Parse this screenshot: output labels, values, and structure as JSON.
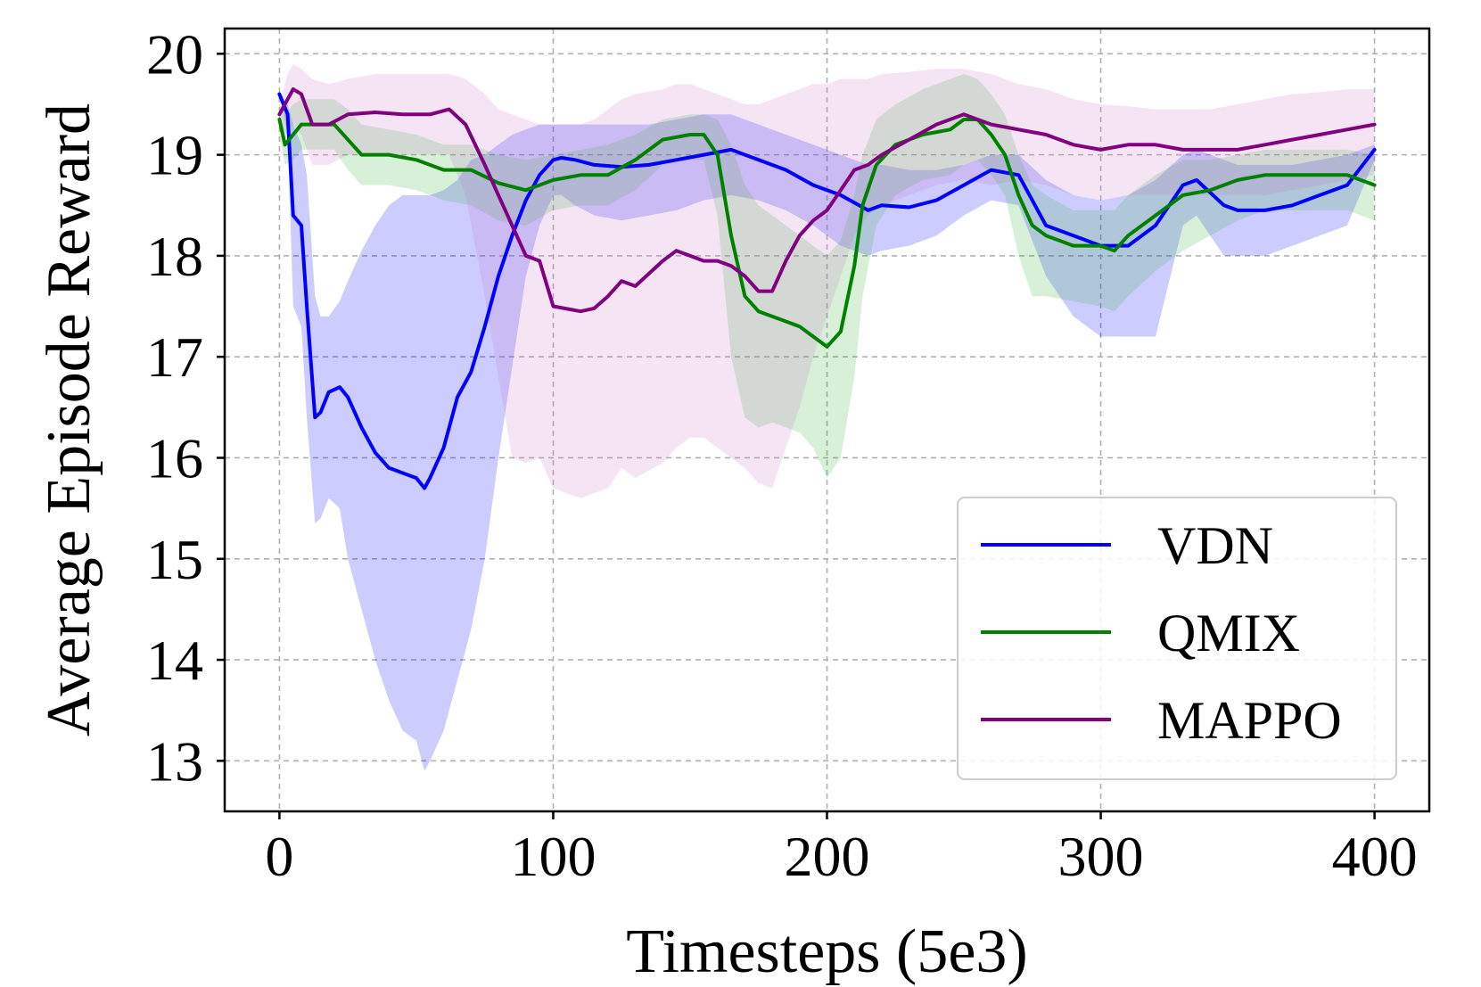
{
  "chart_data": {
    "type": "line",
    "title": "",
    "xlabel": "Timesteps (5e3)",
    "ylabel": "Average Episode Reward",
    "xlim": [
      -20,
      420
    ],
    "ylim": [
      12.5,
      20.25
    ],
    "xticks": [
      0,
      100,
      200,
      300,
      400
    ],
    "yticks": [
      13,
      14,
      15,
      16,
      17,
      18,
      19,
      20
    ],
    "xtick_labels": [
      "0",
      "100",
      "200",
      "300",
      "400"
    ],
    "ytick_labels": [
      "13",
      "14",
      "15",
      "16",
      "17",
      "18",
      "19",
      "20"
    ],
    "grid": true,
    "legend_position": "lower-right",
    "series": [
      {
        "name": "VDN",
        "color": "#0000ff",
        "band_color": "#0000ff",
        "x": [
          0,
          3,
          5,
          8,
          10,
          13,
          15,
          18,
          22,
          25,
          30,
          35,
          40,
          45,
          50,
          53,
          55,
          60,
          65,
          70,
          75,
          80,
          85,
          90,
          95,
          100,
          103,
          108,
          115,
          125,
          135,
          145,
          155,
          165,
          175,
          185,
          195,
          205,
          215,
          220,
          230,
          240,
          250,
          260,
          270,
          280,
          290,
          300,
          310,
          320,
          330,
          335,
          345,
          350,
          360,
          370,
          380,
          390,
          400
        ],
        "y": [
          19.6,
          19.4,
          18.4,
          18.3,
          17.5,
          16.4,
          16.45,
          16.65,
          16.7,
          16.6,
          16.3,
          16.05,
          15.9,
          15.85,
          15.8,
          15.7,
          15.8,
          16.1,
          16.6,
          16.85,
          17.3,
          17.8,
          18.2,
          18.55,
          18.8,
          18.95,
          18.97,
          18.95,
          18.9,
          18.88,
          18.9,
          18.95,
          19.0,
          19.05,
          18.95,
          18.85,
          18.7,
          18.6,
          18.45,
          18.5,
          18.48,
          18.55,
          18.7,
          18.85,
          18.8,
          18.3,
          18.2,
          18.1,
          18.1,
          18.3,
          18.7,
          18.75,
          18.5,
          18.45,
          18.45,
          18.5,
          18.6,
          18.7,
          19.05
        ],
        "upper": [
          19.6,
          19.5,
          19.3,
          19.1,
          18.8,
          17.6,
          17.4,
          17.4,
          17.55,
          17.75,
          18.05,
          18.3,
          18.5,
          18.6,
          18.6,
          18.6,
          18.6,
          18.65,
          18.75,
          18.95,
          19.0,
          19.1,
          19.2,
          19.25,
          19.3,
          19.3,
          19.3,
          19.3,
          19.3,
          19.3,
          19.3,
          19.35,
          19.4,
          19.4,
          19.3,
          19.2,
          19.1,
          19.0,
          18.9,
          18.9,
          18.85,
          18.85,
          18.9,
          19.0,
          19.0,
          18.75,
          18.6,
          18.55,
          18.6,
          18.75,
          19.0,
          19.05,
          18.95,
          18.9,
          18.9,
          18.9,
          18.95,
          19.0,
          19.1
        ],
        "lower": [
          19.6,
          19.2,
          17.5,
          17.3,
          16.4,
          15.35,
          15.4,
          15.6,
          15.5,
          15.0,
          14.5,
          14.0,
          13.6,
          13.3,
          13.2,
          12.9,
          13.0,
          13.3,
          13.8,
          14.3,
          15.0,
          16.0,
          16.9,
          17.8,
          18.3,
          18.6,
          18.6,
          18.5,
          18.4,
          18.35,
          18.4,
          18.45,
          18.55,
          18.6,
          18.55,
          18.45,
          18.3,
          18.1,
          18.0,
          18.05,
          18.1,
          18.2,
          18.4,
          18.55,
          18.5,
          17.8,
          17.4,
          17.2,
          17.2,
          17.2,
          18.3,
          18.4,
          18.0,
          18.0,
          18.0,
          18.1,
          18.2,
          18.3,
          18.95
        ]
      },
      {
        "name": "QMIX",
        "color": "#008000",
        "band_color": "#3cb43c",
        "x": [
          0,
          2,
          5,
          8,
          12,
          20,
          25,
          30,
          40,
          50,
          60,
          70,
          80,
          90,
          100,
          110,
          120,
          130,
          140,
          150,
          155,
          160,
          165,
          170,
          175,
          180,
          185,
          190,
          195,
          200,
          205,
          210,
          213,
          218,
          225,
          235,
          245,
          250,
          255,
          260,
          265,
          270,
          275,
          280,
          290,
          300,
          305,
          310,
          320,
          330,
          340,
          350,
          360,
          370,
          380,
          390,
          400
        ],
        "y": [
          19.35,
          19.1,
          19.2,
          19.3,
          19.3,
          19.3,
          19.15,
          19.0,
          19.0,
          18.95,
          18.85,
          18.85,
          18.72,
          18.65,
          18.75,
          18.8,
          18.8,
          18.95,
          19.15,
          19.2,
          19.2,
          19.0,
          18.2,
          17.6,
          17.45,
          17.4,
          17.35,
          17.3,
          17.2,
          17.1,
          17.25,
          17.9,
          18.5,
          18.9,
          19.1,
          19.2,
          19.25,
          19.35,
          19.35,
          19.2,
          19.0,
          18.6,
          18.3,
          18.2,
          18.1,
          18.1,
          18.05,
          18.2,
          18.4,
          18.6,
          18.65,
          18.75,
          18.8,
          18.8,
          18.8,
          18.8,
          18.7
        ],
        "upper": [
          19.5,
          19.4,
          19.5,
          19.55,
          19.55,
          19.55,
          19.45,
          19.3,
          19.25,
          19.2,
          19.1,
          19.1,
          19.0,
          18.95,
          19.0,
          19.05,
          19.1,
          19.2,
          19.35,
          19.4,
          19.4,
          19.35,
          19.1,
          18.7,
          18.5,
          18.4,
          18.3,
          18.2,
          18.1,
          18.0,
          18.15,
          18.6,
          19.0,
          19.35,
          19.5,
          19.65,
          19.75,
          19.8,
          19.75,
          19.6,
          19.4,
          19.0,
          18.7,
          18.6,
          18.45,
          18.45,
          18.45,
          18.6,
          18.8,
          18.95,
          18.95,
          19.0,
          19.05,
          19.05,
          19.05,
          19.05,
          19.0
        ],
        "lower": [
          19.2,
          18.9,
          18.95,
          19.05,
          19.05,
          19.05,
          18.85,
          18.7,
          18.7,
          18.65,
          18.55,
          18.5,
          18.35,
          18.3,
          18.45,
          18.5,
          18.5,
          18.65,
          18.9,
          18.95,
          18.95,
          18.4,
          17.0,
          16.4,
          16.3,
          16.35,
          16.3,
          16.25,
          16.1,
          15.8,
          16.0,
          16.8,
          17.6,
          18.3,
          18.6,
          18.75,
          18.8,
          18.9,
          18.95,
          18.8,
          18.6,
          18.0,
          17.6,
          17.6,
          17.55,
          17.5,
          17.45,
          17.6,
          17.85,
          18.05,
          18.2,
          18.35,
          18.45,
          18.45,
          18.45,
          18.45,
          18.35
        ]
      },
      {
        "name": "MAPPO",
        "color": "#800080",
        "band_color": "#c878c8",
        "x": [
          0,
          3,
          5,
          8,
          12,
          18,
          25,
          35,
          45,
          55,
          62,
          68,
          75,
          80,
          85,
          90,
          95,
          100,
          110,
          115,
          120,
          125,
          130,
          140,
          145,
          150,
          155,
          160,
          165,
          170,
          175,
          180,
          185,
          190,
          195,
          200,
          205,
          210,
          215,
          220,
          230,
          240,
          250,
          260,
          270,
          280,
          290,
          300,
          310,
          320,
          330,
          340,
          350,
          360,
          370,
          380,
          390,
          400
        ],
        "y": [
          19.4,
          19.55,
          19.65,
          19.6,
          19.3,
          19.3,
          19.4,
          19.42,
          19.4,
          19.4,
          19.45,
          19.3,
          18.9,
          18.6,
          18.3,
          18.0,
          17.95,
          17.5,
          17.45,
          17.48,
          17.6,
          17.75,
          17.7,
          17.95,
          18.05,
          18.0,
          17.95,
          17.95,
          17.9,
          17.8,
          17.65,
          17.65,
          17.95,
          18.2,
          18.35,
          18.45,
          18.65,
          18.85,
          18.9,
          19.0,
          19.15,
          19.3,
          19.4,
          19.3,
          19.25,
          19.2,
          19.1,
          19.05,
          19.1,
          19.1,
          19.05,
          19.05,
          19.05,
          19.1,
          19.15,
          19.2,
          19.25,
          19.3
        ],
        "upper": [
          19.5,
          19.8,
          19.9,
          19.85,
          19.75,
          19.7,
          19.75,
          19.8,
          19.8,
          19.8,
          19.8,
          19.75,
          19.6,
          19.45,
          19.4,
          19.35,
          19.3,
          19.3,
          19.3,
          19.35,
          19.45,
          19.55,
          19.6,
          19.65,
          19.7,
          19.7,
          19.65,
          19.6,
          19.55,
          19.5,
          19.5,
          19.55,
          19.6,
          19.65,
          19.7,
          19.7,
          19.75,
          19.75,
          19.75,
          19.8,
          19.82,
          19.85,
          19.85,
          19.8,
          19.7,
          19.65,
          19.55,
          19.5,
          19.48,
          19.45,
          19.45,
          19.45,
          19.5,
          19.55,
          19.6,
          19.62,
          19.65,
          19.65
        ],
        "lower": [
          19.3,
          19.2,
          19.3,
          19.2,
          18.9,
          18.9,
          19.0,
          19.0,
          19.0,
          19.0,
          19.0,
          18.6,
          17.6,
          16.8,
          16.0,
          15.95,
          16.0,
          15.7,
          15.6,
          15.65,
          15.7,
          15.9,
          15.8,
          15.95,
          16.1,
          16.2,
          16.2,
          16.1,
          16.0,
          15.9,
          15.75,
          15.7,
          16.1,
          16.5,
          17.0,
          17.4,
          17.8,
          18.2,
          18.4,
          18.5,
          18.6,
          18.7,
          18.75,
          18.7,
          18.75,
          18.7,
          18.6,
          18.55,
          18.6,
          18.6,
          18.6,
          18.6,
          18.6,
          18.6,
          18.65,
          18.7,
          18.75,
          18.8
        ]
      }
    ]
  }
}
